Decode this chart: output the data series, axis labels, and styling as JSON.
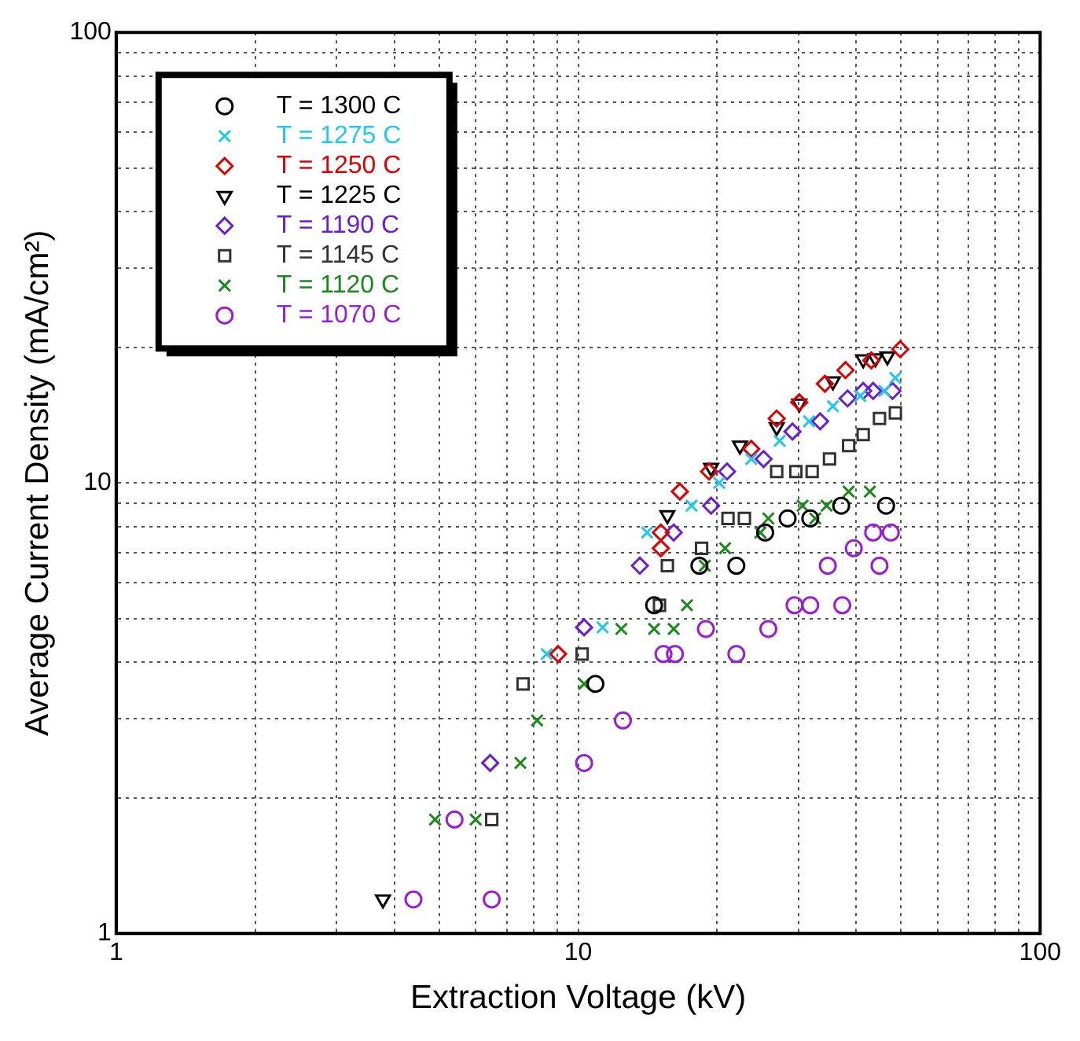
{
  "chart_data": {
    "type": "scatter",
    "xlabel": "Extraction Voltage (kV)",
    "ylabel": "Average Current Density (mA/cm²)",
    "log": "xy",
    "grid": true,
    "legend": "top left",
    "xlim": [
      1,
      100
    ],
    "ylim": [
      1,
      100
    ],
    "xticks": [
      1,
      {
        "value": 2,
        "label": null
      },
      {
        "value": 3,
        "label": null
      },
      {
        "value": 4,
        "label": null
      },
      {
        "value": 5,
        "label": null
      },
      {
        "value": 6,
        "label": null
      },
      {
        "value": 7,
        "label": null
      },
      {
        "value": 8,
        "label": null
      },
      {
        "value": 9,
        "label": null
      },
      10,
      {
        "value": 20,
        "label": null
      },
      {
        "value": 30,
        "label": null
      },
      {
        "value": 40,
        "label": null
      },
      {
        "value": 50,
        "label": null
      },
      {
        "value": 60,
        "label": null
      },
      {
        "value": 70,
        "label": null
      },
      {
        "value": 80,
        "label": null
      },
      {
        "value": 90,
        "label": null
      },
      100
    ],
    "yticks": [
      1,
      {
        "value": 2,
        "label": null
      },
      {
        "value": 3,
        "label": null
      },
      {
        "value": 4,
        "label": null
      },
      {
        "value": 5,
        "label": null
      },
      {
        "value": 6,
        "label": null
      },
      {
        "value": 7,
        "label": null
      },
      {
        "value": 8,
        "label": null
      },
      {
        "value": 9,
        "label": null
      },
      10,
      {
        "value": 20,
        "label": null
      },
      {
        "value": 30,
        "label": null
      },
      {
        "value": 40,
        "label": null
      },
      {
        "value": 50,
        "label": null
      },
      {
        "value": 60,
        "label": null
      },
      {
        "value": 70,
        "label": null
      },
      {
        "value": 80,
        "label": null
      },
      {
        "value": 90,
        "label": null
      },
      100
    ],
    "series": [
      {
        "name": "T = 1300 C",
        "color": "#000000",
        "marker": "circle",
        "x": [
          10.9,
          14.6,
          18.3,
          22.0,
          25.4,
          28.4,
          31.8,
          37.1,
          46.4
        ],
        "values": [
          3.58,
          5.35,
          6.55,
          6.55,
          7.76,
          8.34,
          8.34,
          8.9,
          8.9
        ]
      },
      {
        "name": "T = 1275 C",
        "color": "#1ec8f0",
        "marker": "cross",
        "x": [
          8.55,
          11.3,
          14.1,
          17.6,
          20.2,
          23.7,
          27.3,
          31.6,
          35.6,
          40.8,
          46.0,
          48.6
        ],
        "values": [
          4.17,
          4.78,
          7.76,
          8.9,
          10.0,
          11.3,
          12.4,
          13.7,
          14.8,
          15.6,
          16.0,
          17.1
        ]
      },
      {
        "name": "T = 1250 C",
        "color": "#e00000",
        "marker": "diamond",
        "x": [
          9.05,
          15.1,
          15.1,
          16.6,
          19.2,
          23.7,
          26.9,
          30.1,
          34.2,
          37.9,
          43.1,
          49.8
        ],
        "values": [
          4.17,
          7.16,
          7.76,
          9.57,
          10.6,
          11.9,
          13.9,
          15.1,
          16.6,
          17.8,
          18.7,
          19.8
        ]
      },
      {
        "name": "T = 1225 C",
        "color": "#000000",
        "marker": "triangle",
        "x": [
          3.78,
          15.6,
          19.4,
          22.4,
          26.9,
          30.1,
          35.6,
          41.4,
          44.0,
          46.7
        ],
        "values": [
          1.19,
          8.48,
          10.8,
          12.1,
          13.3,
          15.0,
          16.8,
          18.8,
          18.9,
          19.1
        ]
      },
      {
        "name": "T = 1190 C",
        "color": "#6a1ed8",
        "marker": "diamond",
        "x": [
          6.45,
          10.3,
          13.6,
          16.1,
          19.4,
          21.0,
          25.2,
          29.1,
          33.4,
          38.3,
          41.4,
          43.5,
          47.9
        ],
        "values": [
          2.39,
          4.78,
          6.55,
          7.76,
          8.9,
          10.6,
          11.3,
          13.0,
          13.7,
          15.4,
          16.0,
          16.0,
          16.0
        ]
      },
      {
        "name": "T = 1145 C",
        "color": "#333333",
        "marker": "square",
        "x": [
          6.5,
          7.6,
          10.2,
          15.0,
          15.6,
          18.5,
          21.1,
          22.9,
          26.9,
          29.6,
          32.1,
          35.0,
          38.5,
          41.4,
          44.9,
          48.6
        ],
        "values": [
          1.79,
          3.58,
          4.17,
          5.35,
          6.55,
          7.16,
          8.34,
          8.34,
          10.6,
          10.6,
          10.6,
          11.3,
          12.1,
          12.8,
          13.9,
          14.3
        ]
      },
      {
        "name": "T = 1120 C",
        "color": "#1a8a1a",
        "marker": "cross",
        "x": [
          4.9,
          6.0,
          7.5,
          8.15,
          10.3,
          12.4,
          14.6,
          16.1,
          17.2,
          18.8,
          20.8,
          24.8,
          25.8,
          30.6,
          32.6,
          34.5,
          38.5,
          42.8
        ],
        "values": [
          1.79,
          1.79,
          2.39,
          2.97,
          3.58,
          4.74,
          4.74,
          4.74,
          5.35,
          6.55,
          7.16,
          7.76,
          8.34,
          8.9,
          8.34,
          8.9,
          9.57,
          9.57
        ]
      },
      {
        "name": "T = 1070 C",
        "color": "#9a1ed8",
        "marker": "circle",
        "x": [
          4.4,
          5.4,
          6.5,
          10.3,
          12.5,
          15.3,
          16.2,
          18.9,
          22.0,
          25.8,
          29.4,
          31.8,
          34.7,
          37.3,
          39.5,
          43.5,
          44.9,
          47.5
        ],
        "values": [
          1.19,
          1.79,
          1.19,
          2.39,
          2.97,
          4.17,
          4.17,
          4.74,
          4.17,
          4.74,
          5.35,
          5.35,
          6.55,
          5.35,
          7.16,
          7.76,
          6.55,
          7.76
        ]
      }
    ]
  }
}
